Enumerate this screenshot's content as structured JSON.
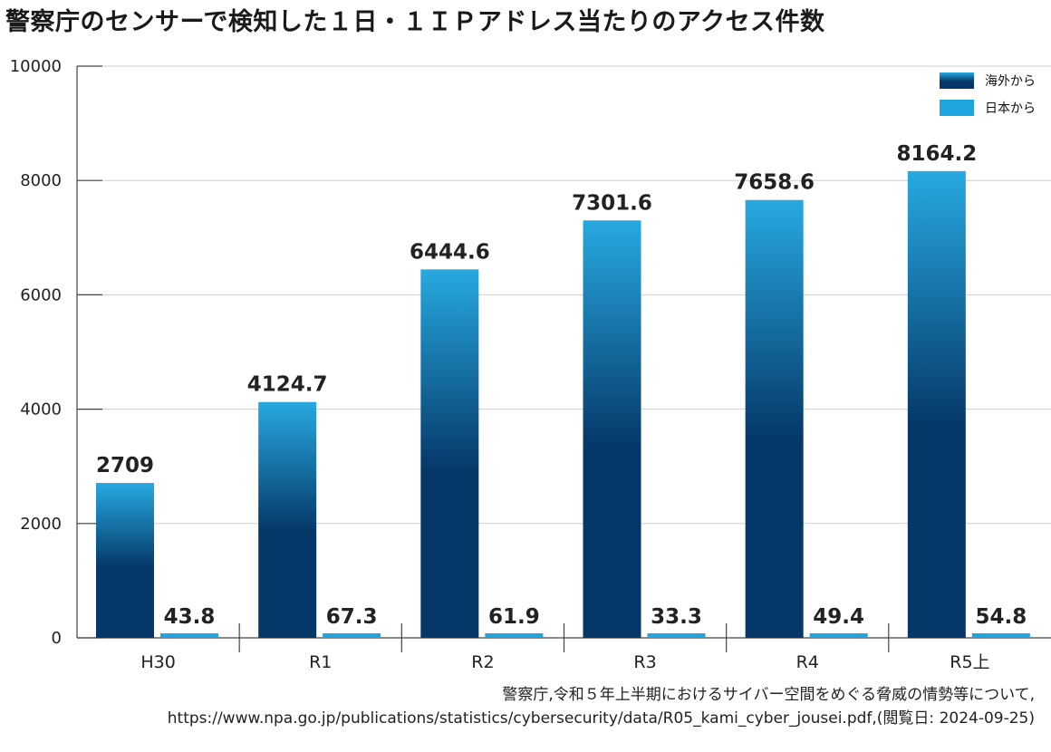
{
  "title": "警察庁のセンサーで検知した１日・１ＩＰアドレス当たりのアクセス件数",
  "source": {
    "line1": "警察庁,令和５年上半期におけるサイバー空間をめぐる脅威の情勢等について,",
    "line2": "https://www.npa.go.jp/publications/statistics/cybersecurity/data/R05_kami_cyber_jousei.pdf,(閲覧日: 2024-09-25)"
  },
  "chart_data": {
    "type": "bar",
    "title": "警察庁のセンサーで検知した１日・１ＩＰアドレス当たりのアクセス件数",
    "xlabel": "",
    "ylabel": "",
    "categories": [
      "H30",
      "R1",
      "R2",
      "R3",
      "R4",
      "R5上"
    ],
    "series": [
      {
        "name": "海外から",
        "values": [
          2709,
          4124.7,
          6444.6,
          7301.6,
          7658.6,
          8164.2
        ],
        "labels": [
          "2709",
          "4124.7",
          "6444.6",
          "7301.6",
          "7658.6",
          "8164.2"
        ],
        "color_top": "#27a9e0",
        "color_bottom": "#053768"
      },
      {
        "name": "日本から",
        "values": [
          43.8,
          67.3,
          61.9,
          33.3,
          49.4,
          54.8
        ],
        "labels": [
          "43.8",
          "67.3",
          "61.9",
          "33.3",
          "49.4",
          "54.8"
        ],
        "color": "#1ea4de"
      }
    ],
    "ylim": [
      0,
      10000
    ],
    "yticks": [
      "0",
      "2000",
      "4000",
      "6000",
      "8000",
      "10000"
    ],
    "grid": true,
    "legend_position": "top-right"
  }
}
